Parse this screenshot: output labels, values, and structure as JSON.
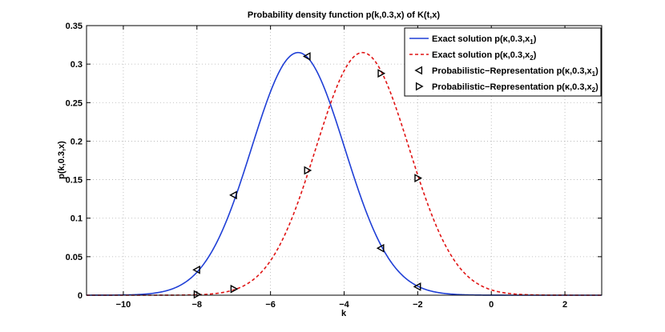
{
  "chart_data": {
    "type": "line",
    "title": "Probability density function p(k,0.3,x) of K(t,x)",
    "xlabel": "k",
    "ylabel": "p(k,0.3,x)",
    "xlim": [
      -11,
      3
    ],
    "ylim": [
      0,
      0.35
    ],
    "xticks": [
      -10,
      -8,
      -6,
      -4,
      -2,
      0,
      2
    ],
    "xtick_labels": [
      "−10",
      "−8",
      "−6",
      "−4",
      "−2",
      "0",
      "2"
    ],
    "yticks": [
      0,
      0.05,
      0.1,
      0.15,
      0.2,
      0.25,
      0.3,
      0.35
    ],
    "ytick_labels": [
      "0",
      "0.05",
      "0.1",
      "0.15",
      "0.2",
      "0.25",
      "0.3",
      "0.35"
    ],
    "grid": true,
    "legend_position": "top-right",
    "series": [
      {
        "name": "Exact solution p(κ,0.3,x1)",
        "kind": "curve",
        "color": "#1f3fd6",
        "style": "solid",
        "mean": -5.25,
        "peak": 0.315,
        "std": 1.266
      },
      {
        "name": "Exact solution p(κ,0.3,x2)",
        "kind": "curve",
        "color": "#e01414",
        "style": "dashed",
        "mean": -3.5,
        "peak": 0.315,
        "std": 1.266
      },
      {
        "name": "Probabilistic−Representation p(κ,0.3,x1)",
        "kind": "markers",
        "marker": "triangle-left",
        "x": [
          -8,
          -7,
          -5,
          -3,
          -2
        ],
        "y": [
          0.033,
          0.13,
          0.31,
          0.061,
          0.011
        ]
      },
      {
        "name": "Probabilistic−Representation p(κ,0.3,x2)",
        "kind": "markers",
        "marker": "triangle-right",
        "x": [
          -8,
          -7,
          -5,
          -3,
          -2
        ],
        "y": [
          0.001,
          0.008,
          0.162,
          0.288,
          0.152
        ]
      }
    ],
    "legend": [
      {
        "text": "Exact solution p(κ,0.3,x",
        "sub": "1",
        "close": ")"
      },
      {
        "text": "Exact solution p(κ,0.3,x",
        "sub": "2",
        "close": ")"
      },
      {
        "text": "Probabilistic−Representation p(κ,0.3,x",
        "sub": "1",
        "close": ")"
      },
      {
        "text": "Probabilistic−Representation p(κ,0.3,x",
        "sub": "2",
        "close": ")"
      }
    ]
  }
}
